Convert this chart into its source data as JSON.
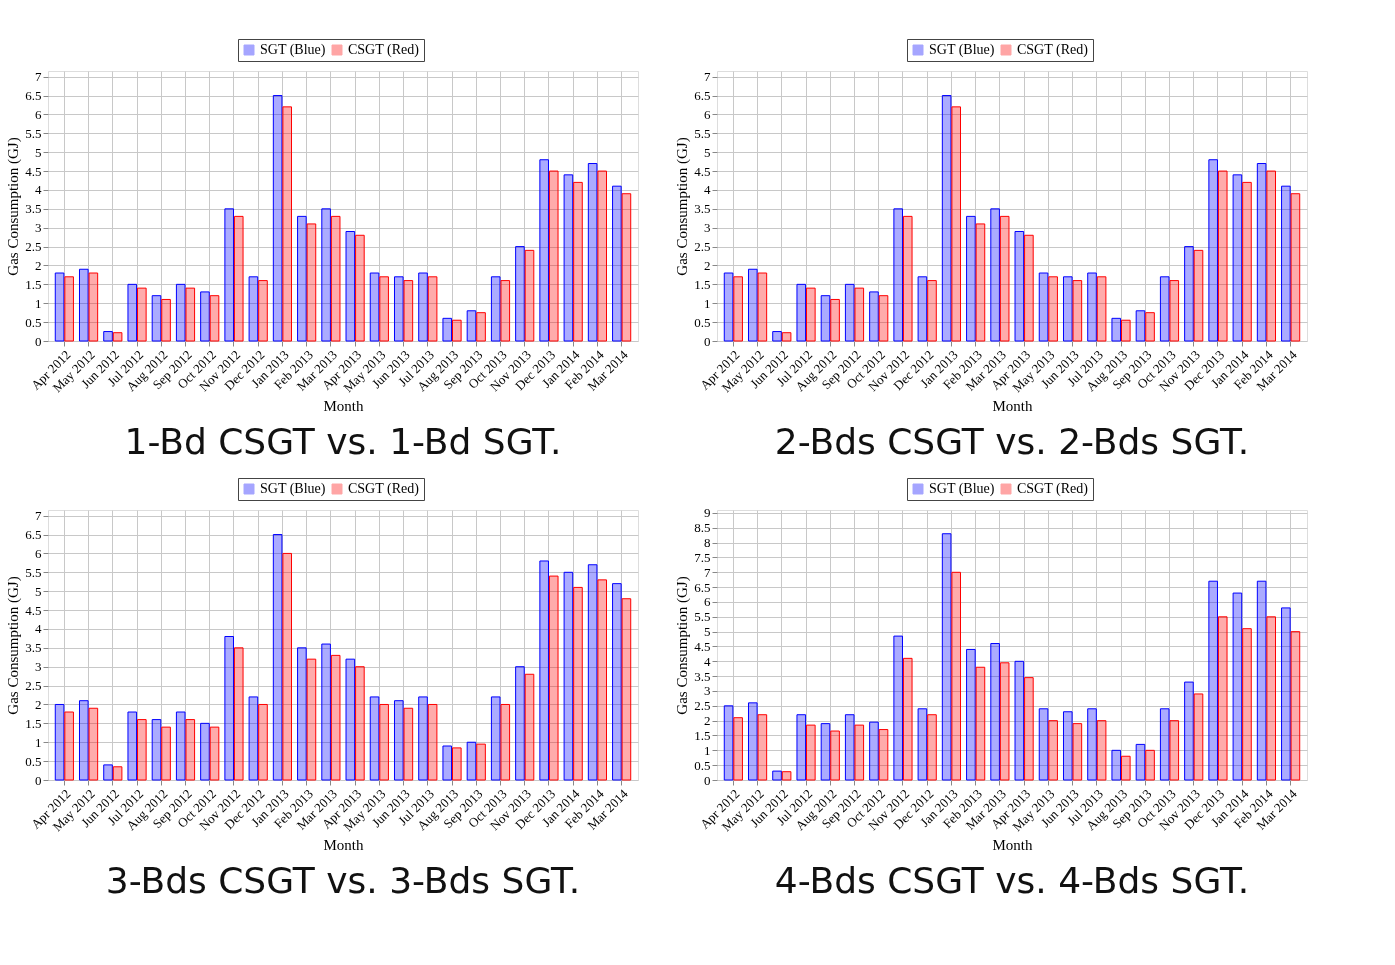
{
  "chart_data": [
    {
      "type": "bar",
      "title": "1-Bd CSGT vs. 1-Bd SGT.",
      "xlabel": "Month",
      "ylabel": "Gas Consumption (GJ)",
      "categories": [
        "Apr 2012",
        "May 2012",
        "Jun 2012",
        "Jul 2012",
        "Aug 2012",
        "Sep 2012",
        "Oct 2012",
        "Nov 2012",
        "Dec 2012",
        "Jan 2013",
        "Feb 2013",
        "Mar 2013",
        "Apr 2013",
        "May 2013",
        "Jun 2013",
        "Jul 2013",
        "Aug 2013",
        "Sep 2013",
        "Oct 2013",
        "Nov 2013",
        "Dec 2013",
        "Jan 2014",
        "Feb 2014",
        "Mar 2014"
      ],
      "series": [
        {
          "name": "SGT (Blue)",
          "color": "#0000ff",
          "values": [
            1.8,
            1.9,
            0.25,
            1.5,
            1.2,
            1.5,
            1.3,
            3.5,
            1.7,
            6.5,
            3.3,
            3.5,
            2.9,
            1.8,
            1.7,
            1.8,
            0.6,
            0.8,
            1.7,
            2.5,
            4.8,
            4.4,
            4.7,
            4.1
          ]
        },
        {
          "name": "CSGT (Red)",
          "color": "#ff0000",
          "values": [
            1.7,
            1.8,
            0.22,
            1.4,
            1.1,
            1.4,
            1.2,
            3.3,
            1.6,
            6.2,
            3.1,
            3.3,
            2.8,
            1.7,
            1.6,
            1.7,
            0.55,
            0.75,
            1.6,
            2.4,
            4.5,
            4.2,
            4.5,
            3.9
          ]
        }
      ],
      "ylim": [
        0,
        7.15
      ],
      "yticks": [
        0,
        0.5,
        1,
        1.5,
        2,
        2.5,
        3,
        3.5,
        4,
        4.5,
        5,
        5.5,
        6,
        6.5,
        7
      ],
      "grid": true,
      "legend": "top"
    },
    {
      "type": "bar",
      "title": "2-Bds CSGT vs. 2-Bds SGT.",
      "xlabel": "Month",
      "ylabel": "Gas Consumption (GJ)",
      "categories": [
        "Apr 2012",
        "May 2012",
        "Jun 2012",
        "Jul 2012",
        "Aug 2012",
        "Sep 2012",
        "Oct 2012",
        "Nov 2012",
        "Dec 2012",
        "Jan 2013",
        "Feb 2013",
        "Mar 2013",
        "Apr 2013",
        "May 2013",
        "Jun 2013",
        "Jul 2013",
        "Aug 2013",
        "Sep 2013",
        "Oct 2013",
        "Nov 2013",
        "Dec 2013",
        "Jan 2014",
        "Feb 2014",
        "Mar 2014"
      ],
      "series": [
        {
          "name": "SGT (Blue)",
          "color": "#0000ff",
          "values": [
            1.8,
            1.9,
            0.25,
            1.5,
            1.2,
            1.5,
            1.3,
            3.5,
            1.7,
            6.5,
            3.3,
            3.5,
            2.9,
            1.8,
            1.7,
            1.8,
            0.6,
            0.8,
            1.7,
            2.5,
            4.8,
            4.4,
            4.7,
            4.1
          ]
        },
        {
          "name": "CSGT (Red)",
          "color": "#ff0000",
          "values": [
            1.7,
            1.8,
            0.22,
            1.4,
            1.1,
            1.4,
            1.2,
            3.3,
            1.6,
            6.2,
            3.1,
            3.3,
            2.8,
            1.7,
            1.6,
            1.7,
            0.55,
            0.75,
            1.6,
            2.4,
            4.5,
            4.2,
            4.5,
            3.9
          ]
        }
      ],
      "ylim": [
        0,
        7.15
      ],
      "yticks": [
        0,
        0.5,
        1,
        1.5,
        2,
        2.5,
        3,
        3.5,
        4,
        4.5,
        5,
        5.5,
        6,
        6.5,
        7
      ],
      "grid": true,
      "legend": "top"
    },
    {
      "type": "bar",
      "title": "3-Bds CSGT vs. 3-Bds SGT.",
      "xlabel": "Month",
      "ylabel": "Gas Consumption (GJ)",
      "categories": [
        "Apr 2012",
        "May 2012",
        "Jun 2012",
        "Jul 2012",
        "Aug 2012",
        "Sep 2012",
        "Oct 2012",
        "Nov 2012",
        "Dec 2012",
        "Jan 2013",
        "Feb 2013",
        "Mar 2013",
        "Apr 2013",
        "May 2013",
        "Jun 2013",
        "Jul 2013",
        "Aug 2013",
        "Sep 2013",
        "Oct 2013",
        "Nov 2013",
        "Dec 2013",
        "Jan 2014",
        "Feb 2014",
        "Mar 2014"
      ],
      "series": [
        {
          "name": "SGT (Blue)",
          "color": "#0000ff",
          "values": [
            2.0,
            2.1,
            0.4,
            1.8,
            1.6,
            1.8,
            1.5,
            3.8,
            2.2,
            6.5,
            3.5,
            3.6,
            3.2,
            2.2,
            2.1,
            2.2,
            0.9,
            1.0,
            2.2,
            3.0,
            5.8,
            5.5,
            5.7,
            5.2
          ]
        },
        {
          "name": "CSGT (Red)",
          "color": "#ff0000",
          "values": [
            1.8,
            1.9,
            0.35,
            1.6,
            1.4,
            1.6,
            1.4,
            3.5,
            2.0,
            6.0,
            3.2,
            3.3,
            3.0,
            2.0,
            1.9,
            2.0,
            0.85,
            0.95,
            2.0,
            2.8,
            5.4,
            5.1,
            5.3,
            4.8
          ]
        }
      ],
      "ylim": [
        0,
        7.15
      ],
      "yticks": [
        0,
        0.5,
        1,
        1.5,
        2,
        2.5,
        3,
        3.5,
        4,
        4.5,
        5,
        5.5,
        6,
        6.5,
        7
      ],
      "grid": true,
      "legend": "top"
    },
    {
      "type": "bar",
      "title": "4-Bds CSGT vs. 4-Bds SGT.",
      "xlabel": "Month",
      "ylabel": "Gas Consumption (GJ)",
      "categories": [
        "Apr 2012",
        "May 2012",
        "Jun 2012",
        "Jul 2012",
        "Aug 2012",
        "Sep 2012",
        "Oct 2012",
        "Nov 2012",
        "Dec 2012",
        "Jan 2013",
        "Feb 2013",
        "Mar 2013",
        "Apr 2013",
        "May 2013",
        "Jun 2013",
        "Jul 2013",
        "Aug 2013",
        "Sep 2013",
        "Oct 2013",
        "Nov 2013",
        "Dec 2013",
        "Jan 2014",
        "Feb 2014",
        "Mar 2014"
      ],
      "series": [
        {
          "name": "SGT (Blue)",
          "color": "#0000ff",
          "values": [
            2.5,
            2.6,
            0.3,
            2.2,
            1.9,
            2.2,
            1.95,
            4.85,
            2.4,
            8.3,
            4.4,
            4.6,
            4.0,
            2.4,
            2.3,
            2.4,
            1.0,
            1.2,
            2.4,
            3.3,
            6.7,
            6.3,
            6.7,
            5.8
          ]
        },
        {
          "name": "CSGT (Red)",
          "color": "#ff0000",
          "values": [
            2.1,
            2.2,
            0.28,
            1.85,
            1.65,
            1.85,
            1.7,
            4.1,
            2.2,
            7.0,
            3.8,
            3.95,
            3.45,
            2.0,
            1.9,
            2.0,
            0.8,
            1.0,
            2.0,
            2.9,
            5.5,
            5.1,
            5.5,
            5.0
          ]
        }
      ],
      "ylim": [
        0,
        9.1
      ],
      "yticks": [
        0,
        0.5,
        1,
        1.5,
        2,
        2.5,
        3,
        3.5,
        4,
        4.5,
        5,
        5.5,
        6,
        6.5,
        7,
        7.5,
        8,
        8.5,
        9
      ],
      "grid": true,
      "legend": "top"
    }
  ]
}
